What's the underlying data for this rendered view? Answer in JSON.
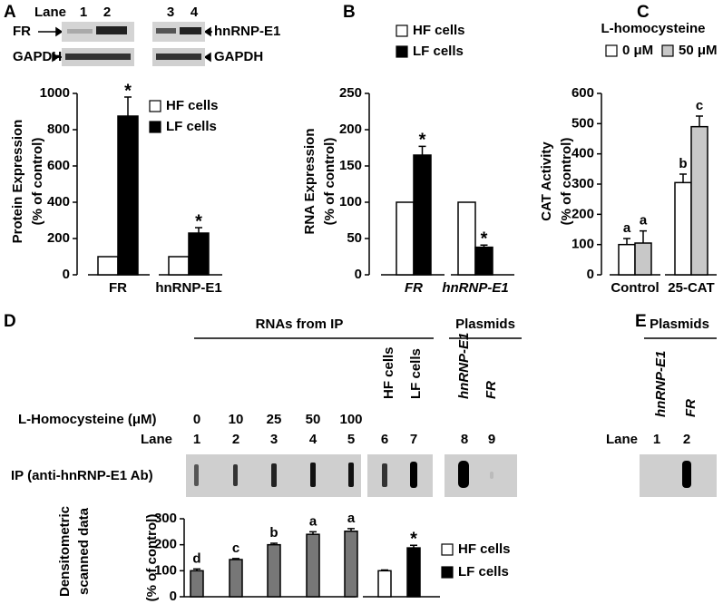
{
  "panels": {
    "A": {
      "letter": "A",
      "lane_label": "Lane",
      "lanes": [
        "1",
        "2",
        "3",
        "4"
      ],
      "blot_left": [
        "FR",
        "GAPDH"
      ],
      "blot_right": [
        "hnRNP-E1",
        "GAPDH"
      ]
    },
    "B": {
      "letter": "B"
    },
    "C": {
      "letter": "C"
    },
    "D": {
      "letter": "D",
      "header": "RNAs from IP",
      "plasmid_header": "Plasmids",
      "condition_label": "L-Homocysteine (μM)",
      "concentrations": [
        "0",
        "10",
        "25",
        "50",
        "100"
      ],
      "cells": [
        "HF cells",
        "LF cells"
      ],
      "plasmid_names": [
        "hnRNP-E1",
        "FR"
      ],
      "lane_label": "Lane",
      "lanes": [
        "1",
        "2",
        "3",
        "4",
        "5",
        "6",
        "7",
        "8",
        "9"
      ],
      "ip_label": "IP (anti-hnRNP-E1 Ab)",
      "side_label": [
        "Densitometric",
        "scanned data"
      ]
    },
    "E": {
      "letter": "E",
      "plasmid_header": "Plasmids",
      "plasmid_names": [
        "hnRNP-E1",
        "FR"
      ],
      "lane_label": "Lane",
      "lanes": [
        "1",
        "2"
      ]
    }
  },
  "chart_data": [
    {
      "type": "bar",
      "ylabel": [
        "Protein Expression",
        "(% of control)"
      ],
      "categories": [
        "FR",
        "hnRNP-E1"
      ],
      "series": [
        {
          "name": "HF cells",
          "color": "#ffffff",
          "values": [
            100,
            100
          ]
        },
        {
          "name": "LF cells",
          "color": "#000000",
          "values": [
            875,
            230
          ],
          "errors": [
            105,
            30
          ],
          "labels": [
            "*",
            "*"
          ]
        }
      ],
      "ylim": [
        0,
        1000
      ],
      "yticks": [
        0,
        200,
        400,
        600,
        800,
        1000
      ]
    },
    {
      "type": "bar",
      "ylabel": [
        "RNA Expression",
        "(% of control)"
      ],
      "categories": [
        "FR",
        "hnRNP-E1"
      ],
      "italic_categories": true,
      "series": [
        {
          "name": "HF cells",
          "color": "#ffffff",
          "values": [
            100,
            100
          ]
        },
        {
          "name": "LF cells",
          "color": "#000000",
          "values": [
            165,
            38
          ],
          "errors": [
            12,
            3
          ],
          "labels": [
            "*",
            "*"
          ]
        }
      ],
      "ylim": [
        0,
        250
      ],
      "yticks": [
        0,
        50,
        100,
        150,
        200,
        250
      ]
    },
    {
      "type": "bar",
      "ylabel": [
        "CAT Activity",
        "(% of control)"
      ],
      "legend_title": "L-homocysteine",
      "categories": [
        "Control",
        "25-CAT"
      ],
      "series": [
        {
          "name": "0 μM",
          "color": "#ffffff",
          "values": [
            100,
            305
          ],
          "errors": [
            20,
            28
          ],
          "labels": [
            "a",
            "b"
          ]
        },
        {
          "name": "50 μM",
          "color": "#c8c8c8",
          "values": [
            105,
            490
          ],
          "errors": [
            40,
            35
          ],
          "labels": [
            "a",
            "c"
          ]
        }
      ],
      "ylim": [
        0,
        600
      ],
      "yticks": [
        0,
        100,
        200,
        300,
        400,
        500,
        600
      ]
    },
    {
      "type": "bar",
      "ylabel": [
        "(% of control)"
      ],
      "series": [
        {
          "color": "#777777",
          "values": [
            100,
            143,
            200,
            240,
            252,
            null,
            null
          ],
          "errors": [
            7,
            4,
            6,
            10,
            10,
            null,
            null
          ],
          "labels": [
            "d",
            "c",
            "b",
            "a",
            "a",
            null,
            null
          ]
        },
        {
          "name": "HF cells",
          "color": "#ffffff",
          "values": [
            null,
            null,
            null,
            null,
            null,
            100,
            null
          ],
          "errors": [
            null,
            null,
            null,
            null,
            null,
            3,
            null
          ]
        },
        {
          "name": "LF cells",
          "color": "#000000",
          "values": [
            null,
            null,
            null,
            null,
            null,
            null,
            188
          ],
          "errors": [
            null,
            null,
            null,
            null,
            null,
            null,
            10
          ],
          "labels": [
            null,
            null,
            null,
            null,
            null,
            null,
            "*"
          ]
        }
      ],
      "ylim": [
        0,
        300
      ],
      "yticks": [
        0,
        100,
        200,
        300
      ]
    }
  ]
}
